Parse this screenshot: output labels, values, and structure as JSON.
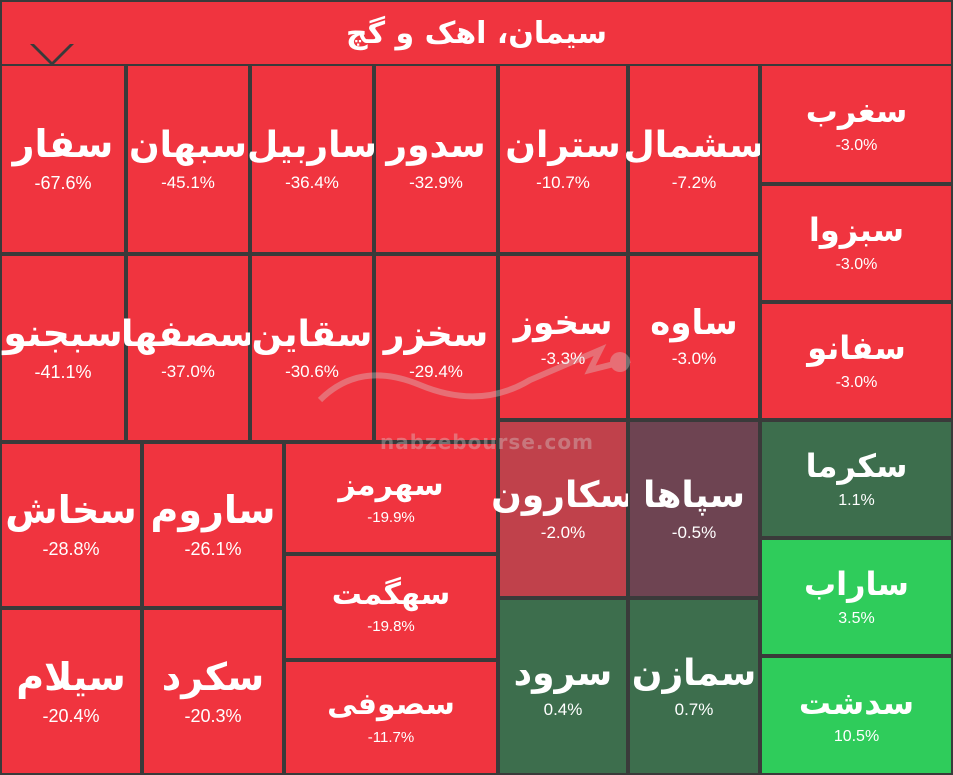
{
  "header": {
    "title": "سیمان، اهک و گچ"
  },
  "watermark": {
    "url": "nabzebourse.com"
  },
  "chart_data": {
    "type": "treemap",
    "title": "سیمان، اهک و گچ",
    "colors": {
      "negative": "#f0343f",
      "negative_mild": "#c0414b",
      "near_zero": "#6e4452",
      "positive_small": "#3d6e4d",
      "positive": "#2fcc5b"
    },
    "tiles": [
      {
        "name": "سفار",
        "change": "-67.6%",
        "value": -67.6,
        "color": "#f0343f"
      },
      {
        "name": "سبهان",
        "change": "-45.1%",
        "value": -45.1,
        "color": "#f0343f"
      },
      {
        "name": "ساربیل",
        "change": "-36.4%",
        "value": -36.4,
        "color": "#f0343f"
      },
      {
        "name": "سدور",
        "change": "-32.9%",
        "value": -32.9,
        "color": "#f0343f"
      },
      {
        "name": "ستران",
        "change": "-10.7%",
        "value": -10.7,
        "color": "#f0343f"
      },
      {
        "name": "سشمال",
        "change": "-7.2%",
        "value": -7.2,
        "color": "#f0343f"
      },
      {
        "name": "سغرب",
        "change": "-3.0%",
        "value": -3.0,
        "color": "#f0343f"
      },
      {
        "name": "سبزوا",
        "change": "-3.0%",
        "value": -3.0,
        "color": "#f0343f"
      },
      {
        "name": "سفانو",
        "change": "-3.0%",
        "value": -3.0,
        "color": "#f0343f"
      },
      {
        "name": "سبجنو",
        "change": "-41.1%",
        "value": -41.1,
        "color": "#f0343f"
      },
      {
        "name": "سصفها",
        "change": "-37.0%",
        "value": -37.0,
        "color": "#f0343f"
      },
      {
        "name": "سقاین",
        "change": "-30.6%",
        "value": -30.6,
        "color": "#f0343f"
      },
      {
        "name": "سخزر",
        "change": "-29.4%",
        "value": -29.4,
        "color": "#f0343f"
      },
      {
        "name": "سخوز",
        "change": "-3.3%",
        "value": -3.3,
        "color": "#f0343f"
      },
      {
        "name": "ساوه",
        "change": "-3.0%",
        "value": -3.0,
        "color": "#f0343f"
      },
      {
        "name": "سخاش",
        "change": "-28.8%",
        "value": -28.8,
        "color": "#f0343f"
      },
      {
        "name": "ساروم",
        "change": "-26.1%",
        "value": -26.1,
        "color": "#f0343f"
      },
      {
        "name": "سهرمز",
        "change": "-19.9%",
        "value": -19.9,
        "color": "#f0343f"
      },
      {
        "name": "سکارون",
        "change": "-2.0%",
        "value": -2.0,
        "color": "#c0414b"
      },
      {
        "name": "سپاها",
        "change": "-0.5%",
        "value": -0.5,
        "color": "#6e4452"
      },
      {
        "name": "سکرما",
        "change": "1.1%",
        "value": 1.1,
        "color": "#3d6e4d"
      },
      {
        "name": "سهگمت",
        "change": "-19.8%",
        "value": -19.8,
        "color": "#f0343f"
      },
      {
        "name": "ساراب",
        "change": "3.5%",
        "value": 3.5,
        "color": "#2fcc5b"
      },
      {
        "name": "سیلام",
        "change": "-20.4%",
        "value": -20.4,
        "color": "#f0343f"
      },
      {
        "name": "سکرد",
        "change": "-20.3%",
        "value": -20.3,
        "color": "#f0343f"
      },
      {
        "name": "سرود",
        "change": "0.4%",
        "value": 0.4,
        "color": "#3d6e4d"
      },
      {
        "name": "سمازن",
        "change": "0.7%",
        "value": 0.7,
        "color": "#3d6e4d"
      },
      {
        "name": "سصوفی",
        "change": "-11.7%",
        "value": -11.7,
        "color": "#f0343f"
      },
      {
        "name": "سدشت",
        "change": "10.5%",
        "value": 10.5,
        "color": "#2fcc5b"
      }
    ]
  }
}
